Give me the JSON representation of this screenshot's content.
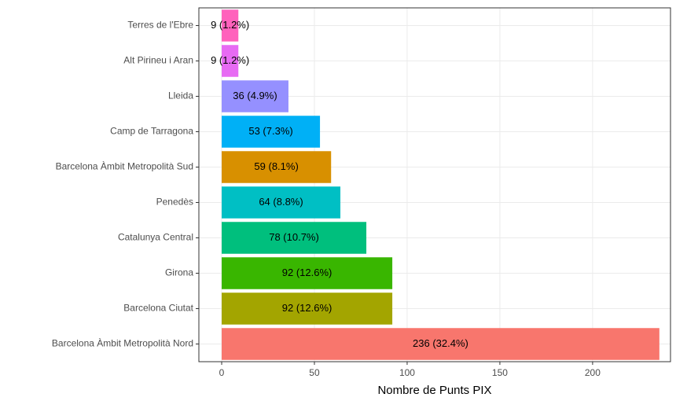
{
  "chart_data": {
    "type": "bar",
    "orientation": "horizontal",
    "x_label": "Nombre de Punts PIX",
    "categories": [
      "Terres de l'Ebre",
      "Alt Pirineu i Aran",
      "Lleida",
      "Camp de Tarragona",
      "Barcelona Àmbit Metropolità Sud",
      "Penedès",
      "Catalunya Central",
      "Girona",
      "Barcelona Ciutat",
      "Barcelona Àmbit Metropolità Nord"
    ],
    "values": [
      9,
      9,
      36,
      53,
      59,
      64,
      78,
      92,
      92,
      236
    ],
    "value_labels": [
      "9 (1.2%)",
      "9 (1.2%)",
      "36 (4.9%)",
      "53 (7.3%)",
      "59 (8.1%)",
      "64 (8.8%)",
      "78 (10.7%)",
      "92 (12.6%)",
      "92 (12.6%)",
      "236 (32.4%)"
    ],
    "colors": [
      "#FF62BC",
      "#E76BF3",
      "#9590FF",
      "#00B0F6",
      "#D89000",
      "#00BFC4",
      "#00BF7D",
      "#39B600",
      "#A3A500",
      "#F8766D"
    ],
    "xlim": [
      -12.3,
      242
    ],
    "xticks": [
      0,
      50,
      100,
      150,
      200
    ],
    "grid": true
  }
}
